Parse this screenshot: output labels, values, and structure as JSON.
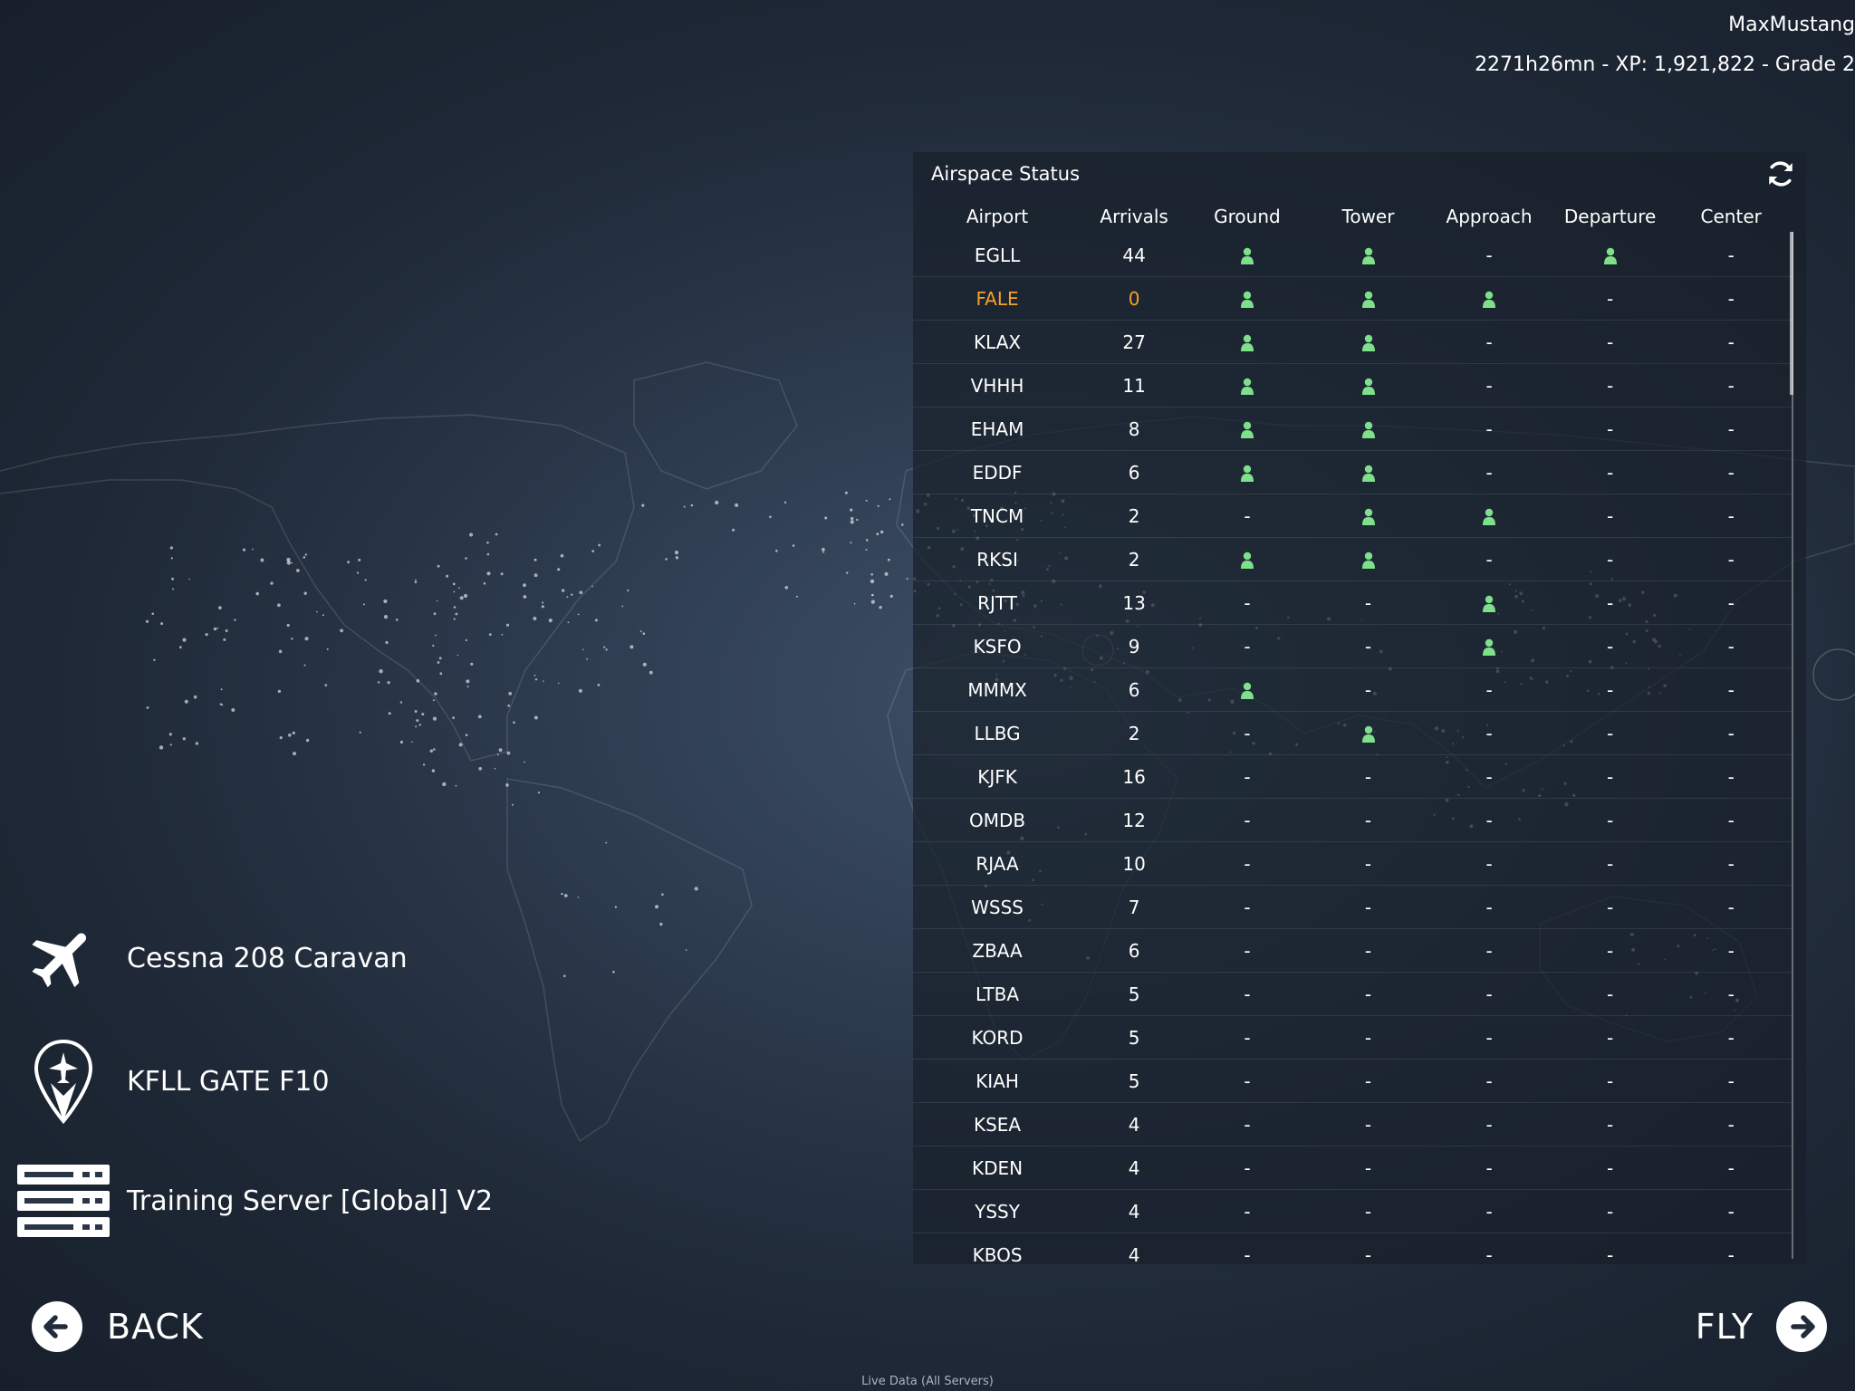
{
  "user": {
    "name": "MaxMustang",
    "stats": "2271h26mn - XP: 1,921,822 - Grade 2"
  },
  "panel": {
    "title": "Airspace Status",
    "refresh_icon": "refresh-icon",
    "columns": [
      "Airport",
      "Arrivals",
      "Ground",
      "Tower",
      "Approach",
      "Departure",
      "Center"
    ],
    "rows": [
      {
        "airport": "EGLL",
        "arrivals": "44",
        "ground": true,
        "tower": true,
        "approach": false,
        "departure": true,
        "center": false
      },
      {
        "airport": "FALE",
        "arrivals": "0",
        "ground": true,
        "tower": true,
        "approach": true,
        "departure": false,
        "center": false,
        "highlight": true
      },
      {
        "airport": "KLAX",
        "arrivals": "27",
        "ground": true,
        "tower": true,
        "approach": false,
        "departure": false,
        "center": false
      },
      {
        "airport": "VHHH",
        "arrivals": "11",
        "ground": true,
        "tower": true,
        "approach": false,
        "departure": false,
        "center": false
      },
      {
        "airport": "EHAM",
        "arrivals": "8",
        "ground": true,
        "tower": true,
        "approach": false,
        "departure": false,
        "center": false
      },
      {
        "airport": "EDDF",
        "arrivals": "6",
        "ground": true,
        "tower": true,
        "approach": false,
        "departure": false,
        "center": false
      },
      {
        "airport": "TNCM",
        "arrivals": "2",
        "ground": false,
        "tower": true,
        "approach": true,
        "departure": false,
        "center": false
      },
      {
        "airport": "RKSI",
        "arrivals": "2",
        "ground": true,
        "tower": true,
        "approach": false,
        "departure": false,
        "center": false
      },
      {
        "airport": "RJTT",
        "arrivals": "13",
        "ground": false,
        "tower": false,
        "approach": true,
        "departure": false,
        "center": false
      },
      {
        "airport": "KSFO",
        "arrivals": "9",
        "ground": false,
        "tower": false,
        "approach": true,
        "departure": false,
        "center": false
      },
      {
        "airport": "MMMX",
        "arrivals": "6",
        "ground": true,
        "tower": false,
        "approach": false,
        "departure": false,
        "center": false
      },
      {
        "airport": "LLBG",
        "arrivals": "2",
        "ground": false,
        "tower": true,
        "approach": false,
        "departure": false,
        "center": false
      },
      {
        "airport": "KJFK",
        "arrivals": "16",
        "ground": false,
        "tower": false,
        "approach": false,
        "departure": false,
        "center": false
      },
      {
        "airport": "OMDB",
        "arrivals": "12",
        "ground": false,
        "tower": false,
        "approach": false,
        "departure": false,
        "center": false
      },
      {
        "airport": "RJAA",
        "arrivals": "10",
        "ground": false,
        "tower": false,
        "approach": false,
        "departure": false,
        "center": false
      },
      {
        "airport": "WSSS",
        "arrivals": "7",
        "ground": false,
        "tower": false,
        "approach": false,
        "departure": false,
        "center": false
      },
      {
        "airport": "ZBAA",
        "arrivals": "6",
        "ground": false,
        "tower": false,
        "approach": false,
        "departure": false,
        "center": false
      },
      {
        "airport": "LTBA",
        "arrivals": "5",
        "ground": false,
        "tower": false,
        "approach": false,
        "departure": false,
        "center": false
      },
      {
        "airport": "KORD",
        "arrivals": "5",
        "ground": false,
        "tower": false,
        "approach": false,
        "departure": false,
        "center": false
      },
      {
        "airport": "KIAH",
        "arrivals": "5",
        "ground": false,
        "tower": false,
        "approach": false,
        "departure": false,
        "center": false
      },
      {
        "airport": "KSEA",
        "arrivals": "4",
        "ground": false,
        "tower": false,
        "approach": false,
        "departure": false,
        "center": false
      },
      {
        "airport": "KDEN",
        "arrivals": "4",
        "ground": false,
        "tower": false,
        "approach": false,
        "departure": false,
        "center": false
      },
      {
        "airport": "YSSY",
        "arrivals": "4",
        "ground": false,
        "tower": false,
        "approach": false,
        "departure": false,
        "center": false
      },
      {
        "airport": "KBOS",
        "arrivals": "4",
        "ground": false,
        "tower": false,
        "approach": false,
        "departure": false,
        "center": false
      }
    ],
    "dash": "-",
    "controller_icon": "person-icon",
    "controller_color": "#7ee08a",
    "highlight_color": "#f5a028"
  },
  "selection": {
    "aircraft": "Cessna 208 Caravan",
    "aircraft_icon": "airplane-icon",
    "location": "KFLL GATE F10",
    "location_icon": "map-pin-icon",
    "server": "Training Server [Global] V2",
    "server_icon": "server-icon"
  },
  "nav": {
    "back_label": "BACK",
    "back_icon": "arrow-left-icon",
    "fly_label": "FLY",
    "fly_icon": "arrow-right-icon"
  },
  "footer": "Live Data (All Servers)"
}
